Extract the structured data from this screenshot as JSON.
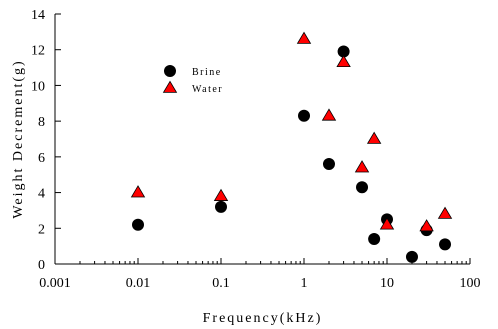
{
  "chart_data": {
    "type": "scatter",
    "title": "",
    "xlabel": "Frequency(kHz)",
    "ylabel": "Weight Decrement(g)",
    "xscale": "log",
    "xlim": [
      0.001,
      100
    ],
    "ylim": [
      0,
      14
    ],
    "xticks": [
      0.001,
      0.01,
      0.1,
      1,
      10,
      100
    ],
    "xtick_labels": [
      "0.001",
      "0.01",
      "0.1",
      "1",
      "10",
      "100"
    ],
    "yticks": [
      0,
      2,
      4,
      6,
      8,
      10,
      12,
      14
    ],
    "ytick_labels": [
      "0",
      "2",
      "4",
      "6",
      "8",
      "10",
      "12",
      "14"
    ],
    "grid": false,
    "legend_position": "upper-left inside plot",
    "series": [
      {
        "name": "Brine",
        "marker": "circle",
        "color": "#000000",
        "points": [
          {
            "x": 0.01,
            "y": 2.2
          },
          {
            "x": 0.1,
            "y": 3.2
          },
          {
            "x": 1,
            "y": 8.3
          },
          {
            "x": 2,
            "y": 5.6
          },
          {
            "x": 3,
            "y": 11.9
          },
          {
            "x": 5,
            "y": 4.3
          },
          {
            "x": 7,
            "y": 1.4
          },
          {
            "x": 10,
            "y": 2.5
          },
          {
            "x": 20,
            "y": 0.4
          },
          {
            "x": 30,
            "y": 1.9
          },
          {
            "x": 50,
            "y": 1.1
          }
        ]
      },
      {
        "name": "Water",
        "marker": "triangle",
        "color": "#ff0000",
        "points": [
          {
            "x": 0.01,
            "y": 4.0
          },
          {
            "x": 0.1,
            "y": 3.8
          },
          {
            "x": 1,
            "y": 12.6
          },
          {
            "x": 2,
            "y": 8.3
          },
          {
            "x": 3,
            "y": 11.3
          },
          {
            "x": 5,
            "y": 5.4
          },
          {
            "x": 7,
            "y": 7.0
          },
          {
            "x": 10,
            "y": 2.2
          },
          {
            "x": 30,
            "y": 2.1
          },
          {
            "x": 50,
            "y": 2.8
          }
        ]
      }
    ]
  }
}
